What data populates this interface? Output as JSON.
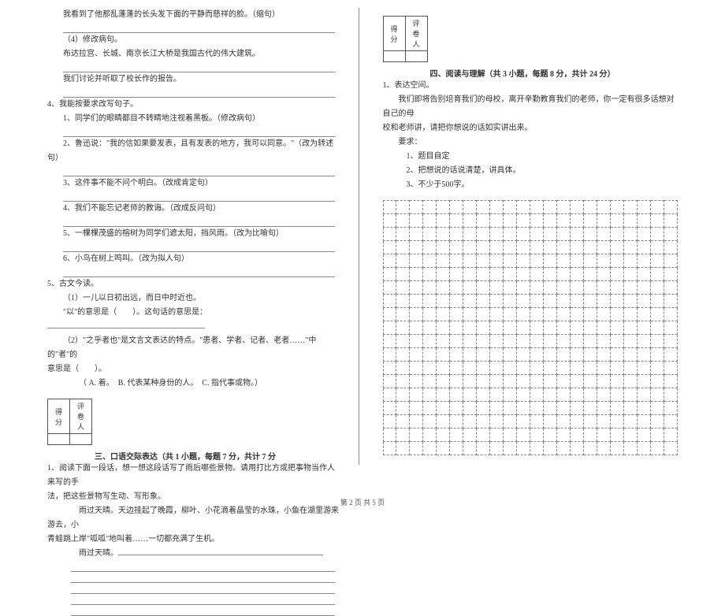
{
  "left": {
    "q_line1": "我看到了他那乱蓬蓬的长头发下面的平静而慈祥的脸。（缩句）",
    "q4_title": "（4）修改病句。",
    "q4_a": "布达拉宫、长城、南京长江大桥是我国古代的伟大建筑。",
    "q4_b": "我们讨论并听取了校长作的报告。",
    "q4s_title": "4、我能按要求改写句子。",
    "q4s_1": "1、同学们的眼睛都目不转睛地注视着黑板。（修改病句）",
    "q4s_2": "2、鲁迅说：\"我的信如果要发表，且有发表的地方，我可以同意。\"（改为转述句）",
    "q4s_3": "3、这件事不能不问个明白。（改成肯定句）",
    "q4s_4": "4、我们不能忘记老师的教诲。（改成反问句）",
    "q4s_5": "5、一棵棵茂盛的榕树为同学们遮太阳，挡风雨。（改为比喻句）",
    "q4s_6": "6、小鸟在树上鸣叫。（改为拟人句）",
    "q5_title": "5、古文今读。",
    "q5_1": "（1）一儿以日初出远，而日中时近也。",
    "q5_1a": "\"以\"的意思是（　　）。这句话的意思是：",
    "q5_2": "（2）\"之乎者也\"是文言文表达的特点。\"患者、学者、记者、老者……\"中的\"者\"的",
    "q5_2b": "意思是（　　）。",
    "q5_opts": "（ A. 着。　B. 代表某种身份的人。　C. 指代事或物。）",
    "score_label1": "得分",
    "score_label2": "评卷人",
    "section3": "三、口语交际表达（共 1 小题，每题 7 分，共计 7 分",
    "q3_1": "1、阅读下面一段话，想一想这段话写了雨后哪些景物。请用打比方或把事物当作人来写的手",
    "q3_1b": "法，把这些景物写生动、写形象。",
    "q3_body1": "雨过天晴。天边挂起了晚霞，柳叶、小花滴着晶莹的水珠，小鱼在湖里游来游去，小",
    "q3_body2": "青蛙跳上岸\"呱呱\"地叫着……一切都充满了生机。",
    "q3_body3": "雨过天晴。"
  },
  "right": {
    "score_label1": "得分",
    "score_label2": "评卷人",
    "section4": "四、阅读与理解（共 3 小题，每题 8 分，共计 24 分）",
    "q1_title": "1、表达空间。",
    "q1_body1": "我们即将告别培育我们的母校，离开辛勤教育我们的老师，你一定有很多话想对自己的母",
    "q1_body2": "校和老师讲，请把你想说的话如实讲出来。",
    "req_title": "要求：",
    "req_1": "1、题目自定",
    "req_2": "2、把想说的话说清楚，讲具体。",
    "req_3": "3、不少于500字。"
  },
  "footer": "第 2 页  共 5 页",
  "grid": {
    "rows": 19,
    "cols": 22
  }
}
